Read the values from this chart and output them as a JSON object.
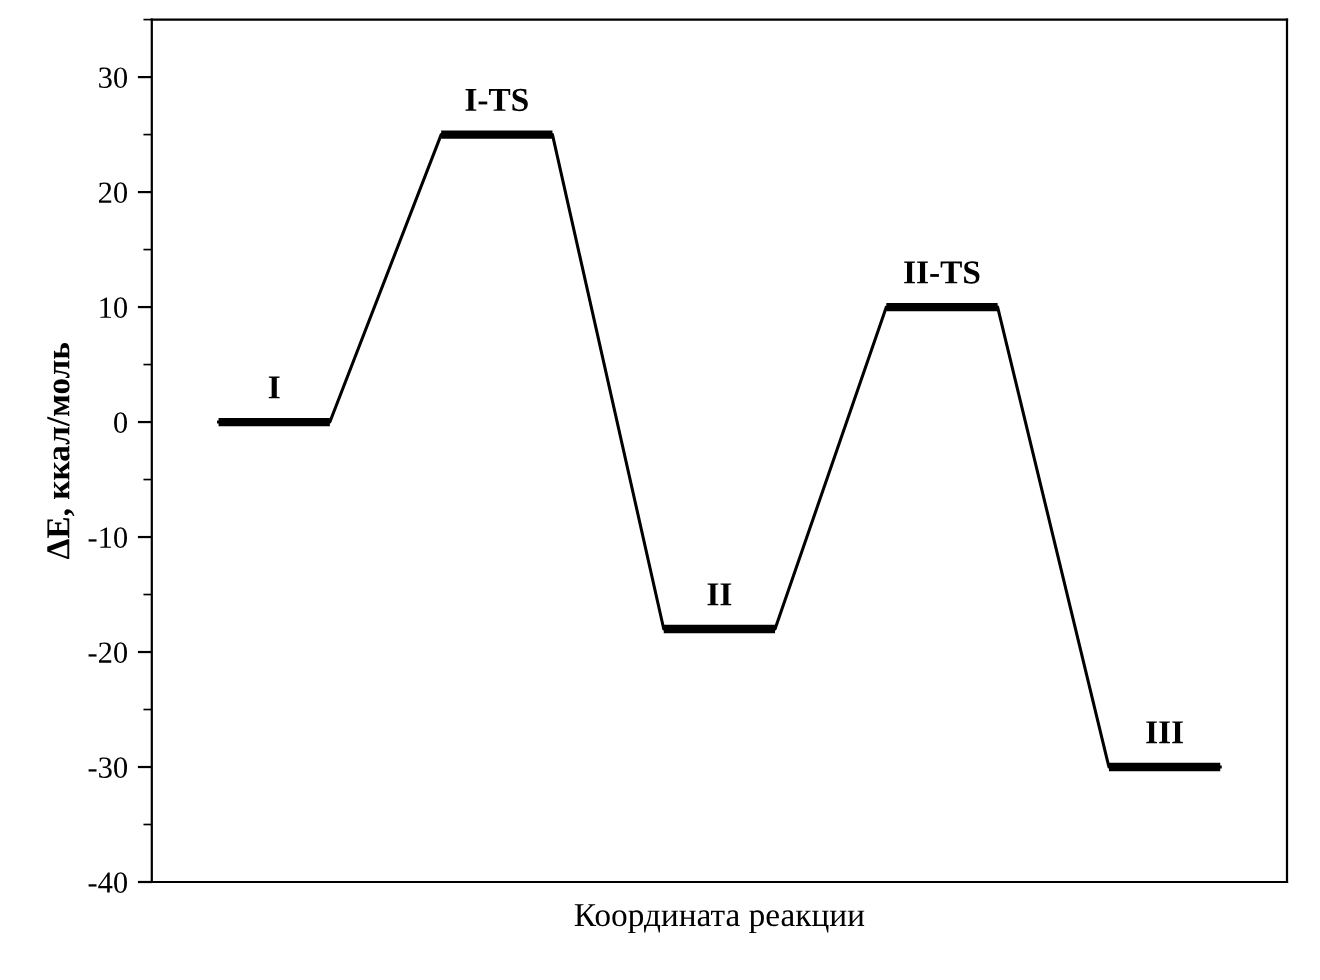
{
  "chart_data": {
    "type": "line",
    "xlabel": "Координата реакции",
    "ylabel": "ΔE, ккал/моль",
    "categories": [
      null,
      null,
      null,
      null,
      null,
      null,
      null,
      null,
      null,
      null
    ],
    "series": [
      {
        "color": "#000000",
        "values": [
          0,
          0,
          25,
          25,
          -18,
          -18,
          10,
          10,
          -30,
          -30
        ]
      }
    ],
    "ylim": [
      -40,
      35
    ],
    "yticks": [
      -40,
      -30,
      -20,
      -10,
      0,
      10,
      20,
      30
    ],
    "annotations": [
      {
        "text": "I",
        "y": 0
      },
      {
        "text": "I-TS",
        "y": 25
      },
      {
        "text": "II",
        "y": -18
      },
      {
        "text": "II-TS",
        "y": 10
      },
      {
        "text": "III",
        "y": -30
      }
    ],
    "tick_labels": "y",
    "grid": false,
    "legend": false,
    "marker": "none",
    "line_style": "solid"
  }
}
